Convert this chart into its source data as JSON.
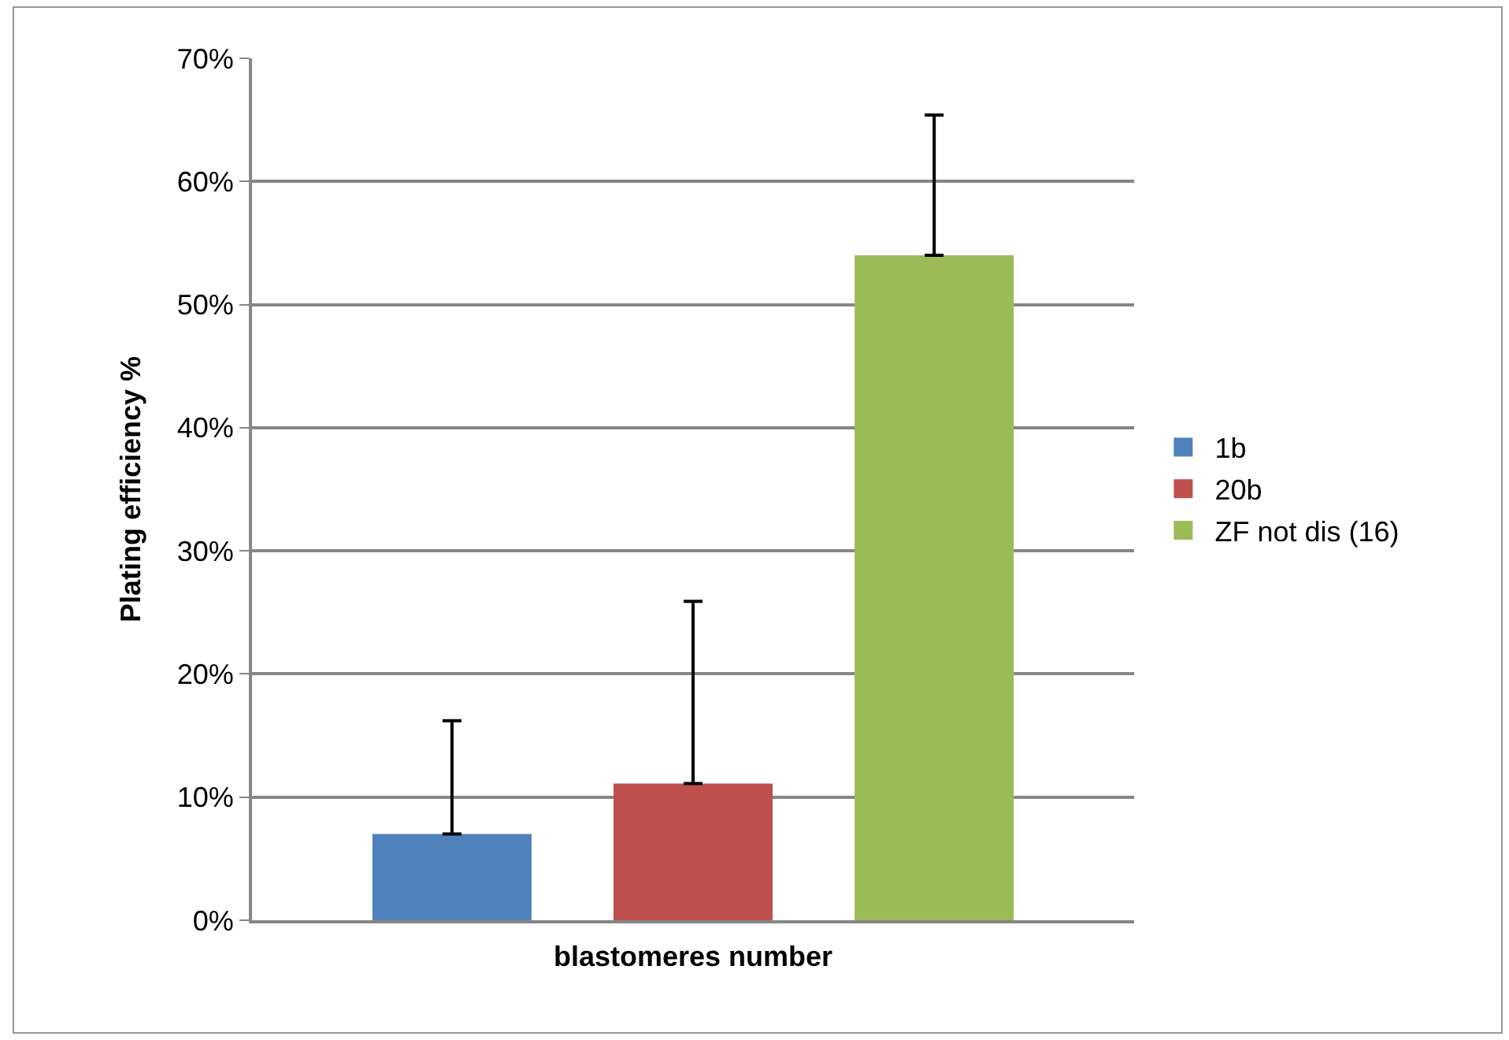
{
  "chart_data": {
    "type": "bar",
    "xlabel": "blastomeres number",
    "ylabel": "Plating efficiency %",
    "categories": [
      null
    ],
    "series": [
      {
        "name": "1b",
        "color": "#4f81bd",
        "values": [
          7.0
        ],
        "errors": [
          [
            7.0,
            16.2
          ]
        ]
      },
      {
        "name": "20b",
        "color": "#c0504d",
        "values": [
          11.1
        ],
        "errors": [
          [
            11.1,
            25.9
          ]
        ]
      },
      {
        "name": "ZF not dis (16)",
        "color": "#9bbb59",
        "values": [
          54.0
        ],
        "errors": [
          [
            54.0,
            65.4
          ]
        ]
      }
    ],
    "ylim": [
      0,
      70
    ],
    "yticks": [
      {
        "value": 0,
        "label": "0%"
      },
      {
        "value": 10,
        "label": "10%"
      },
      {
        "value": 20,
        "label": "20%"
      },
      {
        "value": 30,
        "label": "30%"
      },
      {
        "value": 40,
        "label": "40%"
      },
      {
        "value": 50,
        "label": "50%"
      },
      {
        "value": 60,
        "label": "60%"
      },
      {
        "value": 70,
        "label": "70%"
      }
    ],
    "grid": "y",
    "legend": "right"
  }
}
